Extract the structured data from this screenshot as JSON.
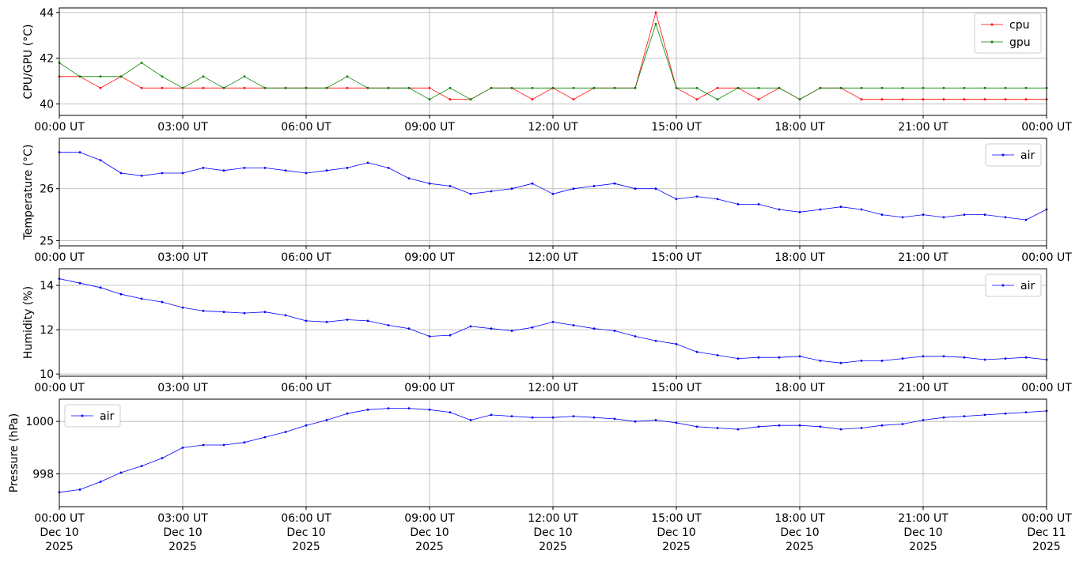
{
  "chart_data": [
    {
      "type": "line",
      "ylabel": "CPU/GPU (°C)",
      "ylim": [
        39.5,
        44.2
      ],
      "yticks": [
        40,
        42,
        44
      ],
      "xlim_hours": [
        0,
        24
      ],
      "xticks": [
        "00:00 UT",
        "03:00 UT",
        "06:00 UT",
        "09:00 UT",
        "12:00 UT",
        "15:00 UT",
        "18:00 UT",
        "21:00 UT",
        "00:00 UT"
      ],
      "grid": true,
      "legend_position": "top-right",
      "series": [
        {
          "name": "cpu",
          "color": "#ff0000",
          "x": [
            0,
            0.5,
            1,
            1.5,
            2,
            2.5,
            3,
            3.5,
            4,
            4.5,
            5,
            5.5,
            6,
            6.5,
            7,
            7.5,
            8,
            8.5,
            9,
            9.5,
            10,
            10.5,
            11,
            11.5,
            12,
            12.5,
            13,
            13.5,
            14,
            14.5,
            15,
            15.5,
            16,
            16.5,
            17,
            17.5,
            18,
            18.5,
            19,
            19.5,
            20,
            20.5,
            21,
            21.5,
            22,
            22.5,
            23,
            23.5,
            24
          ],
          "values": [
            41.2,
            41.2,
            40.7,
            41.2,
            40.7,
            40.7,
            40.7,
            40.7,
            40.7,
            40.7,
            40.7,
            40.7,
            40.7,
            40.7,
            40.7,
            40.7,
            40.7,
            40.7,
            40.7,
            40.2,
            40.2,
            40.7,
            40.7,
            40.2,
            40.7,
            40.2,
            40.7,
            40.7,
            40.7,
            44.0,
            40.7,
            40.2,
            40.7,
            40.7,
            40.2,
            40.7,
            40.2,
            40.7,
            40.7,
            40.2,
            40.2,
            40.2,
            40.2,
            40.2,
            40.2,
            40.2,
            40.2,
            40.2,
            40.2
          ]
        },
        {
          "name": "gpu",
          "color": "#008000",
          "x": [
            0,
            0.5,
            1,
            1.5,
            2,
            2.5,
            3,
            3.5,
            4,
            4.5,
            5,
            5.5,
            6,
            6.5,
            7,
            7.5,
            8,
            8.5,
            9,
            9.5,
            10,
            10.5,
            11,
            11.5,
            12,
            12.5,
            13,
            13.5,
            14,
            14.5,
            15,
            15.5,
            16,
            16.5,
            17,
            17.5,
            18,
            18.5,
            19,
            19.5,
            20,
            20.5,
            21,
            21.5,
            22,
            22.5,
            23,
            23.5,
            24
          ],
          "values": [
            41.8,
            41.2,
            41.2,
            41.2,
            41.8,
            41.2,
            40.7,
            41.2,
            40.7,
            41.2,
            40.7,
            40.7,
            40.7,
            40.7,
            41.2,
            40.7,
            40.7,
            40.7,
            40.2,
            40.7,
            40.2,
            40.7,
            40.7,
            40.7,
            40.7,
            40.7,
            40.7,
            40.7,
            40.7,
            43.5,
            40.7,
            40.7,
            40.2,
            40.7,
            40.7,
            40.7,
            40.2,
            40.7,
            40.7,
            40.7,
            40.7,
            40.7,
            40.7,
            40.7,
            40.7,
            40.7,
            40.7,
            40.7,
            40.7
          ]
        }
      ]
    },
    {
      "type": "line",
      "ylabel": "Temperature (°C)",
      "ylim": [
        24.9,
        26.97
      ],
      "yticks": [
        25,
        26
      ],
      "xlim_hours": [
        0,
        24
      ],
      "xticks": [
        "00:00 UT",
        "03:00 UT",
        "06:00 UT",
        "09:00 UT",
        "12:00 UT",
        "15:00 UT",
        "18:00 UT",
        "21:00 UT",
        "00:00 UT"
      ],
      "grid": true,
      "legend_position": "top-right",
      "series": [
        {
          "name": "air",
          "color": "#0000ff",
          "x": [
            0,
            0.5,
            1,
            1.5,
            2,
            2.5,
            3,
            3.5,
            4,
            4.5,
            5,
            5.5,
            6,
            6.5,
            7,
            7.5,
            8,
            8.5,
            9,
            9.5,
            10,
            10.5,
            11,
            11.5,
            12,
            12.5,
            13,
            13.5,
            14,
            14.5,
            15,
            15.5,
            16,
            16.5,
            17,
            17.5,
            18,
            18.5,
            19,
            19.5,
            20,
            20.5,
            21,
            21.5,
            22,
            22.5,
            23,
            23.5,
            24
          ],
          "values": [
            26.7,
            26.7,
            26.55,
            26.3,
            26.25,
            26.3,
            26.3,
            26.4,
            26.35,
            26.4,
            26.4,
            26.35,
            26.3,
            26.35,
            26.4,
            26.5,
            26.4,
            26.2,
            26.1,
            26.05,
            25.9,
            25.95,
            26.0,
            26.1,
            25.9,
            26.0,
            26.05,
            26.1,
            26.0,
            26.0,
            25.8,
            25.85,
            25.8,
            25.7,
            25.7,
            25.6,
            25.55,
            25.6,
            25.65,
            25.6,
            25.5,
            25.45,
            25.5,
            25.45,
            25.5,
            25.5,
            25.45,
            25.4,
            25.6
          ]
        }
      ]
    },
    {
      "type": "line",
      "ylabel": "Humidity (%)",
      "ylim": [
        9.9,
        14.75
      ],
      "yticks": [
        10,
        12,
        14
      ],
      "xlim_hours": [
        0,
        24
      ],
      "xticks": [
        "00:00 UT",
        "03:00 UT",
        "06:00 UT",
        "09:00 UT",
        "12:00 UT",
        "15:00 UT",
        "18:00 UT",
        "21:00 UT",
        "00:00 UT"
      ],
      "grid": true,
      "legend_position": "top-right",
      "series": [
        {
          "name": "air",
          "color": "#0000ff",
          "x": [
            0,
            0.5,
            1,
            1.5,
            2,
            2.5,
            3,
            3.5,
            4,
            4.5,
            5,
            5.5,
            6,
            6.5,
            7,
            7.5,
            8,
            8.5,
            9,
            9.5,
            10,
            10.5,
            11,
            11.5,
            12,
            12.5,
            13,
            13.5,
            14,
            14.5,
            15,
            15.5,
            16,
            16.5,
            17,
            17.5,
            18,
            18.5,
            19,
            19.5,
            20,
            20.5,
            21,
            21.5,
            22,
            22.5,
            23,
            23.5,
            24
          ],
          "values": [
            14.3,
            14.1,
            13.9,
            13.6,
            13.4,
            13.25,
            13.0,
            12.85,
            12.8,
            12.75,
            12.8,
            12.65,
            12.4,
            12.35,
            12.45,
            12.4,
            12.2,
            12.05,
            11.7,
            11.75,
            12.15,
            12.05,
            11.95,
            12.1,
            12.35,
            12.2,
            12.05,
            11.95,
            11.7,
            11.5,
            11.35,
            11.0,
            10.85,
            10.7,
            10.75,
            10.75,
            10.8,
            10.6,
            10.5,
            10.6,
            10.6,
            10.7,
            10.8,
            10.8,
            10.75,
            10.65,
            10.7,
            10.75,
            10.65
          ]
        }
      ]
    },
    {
      "type": "line",
      "ylabel": "Pressure (hPa)",
      "ylim": [
        996.75,
        1000.85
      ],
      "yticks": [
        998,
        1000
      ],
      "xlim_hours": [
        0,
        24
      ],
      "xticks": [
        "00:00 UT",
        "03:00 UT",
        "06:00 UT",
        "09:00 UT",
        "12:00 UT",
        "15:00 UT",
        "18:00 UT",
        "21:00 UT",
        "00:00 UT"
      ],
      "xticks_line2": [
        "Dec 10",
        "Dec 10",
        "Dec 10",
        "Dec 10",
        "Dec 10",
        "Dec 10",
        "Dec 10",
        "Dec 10",
        "Dec 11"
      ],
      "xticks_line3": [
        "2025",
        "2025",
        "2025",
        "2025",
        "2025",
        "2025",
        "2025",
        "2025",
        "2025"
      ],
      "grid": true,
      "legend_position": "top-left",
      "series": [
        {
          "name": "air",
          "color": "#0000ff",
          "x": [
            0,
            0.5,
            1,
            1.5,
            2,
            2.5,
            3,
            3.5,
            4,
            4.5,
            5,
            5.5,
            6,
            6.5,
            7,
            7.5,
            8,
            8.5,
            9,
            9.5,
            10,
            10.5,
            11,
            11.5,
            12,
            12.5,
            13,
            13.5,
            14,
            14.5,
            15,
            15.5,
            16,
            16.5,
            17,
            17.5,
            18,
            18.5,
            19,
            19.5,
            20,
            20.5,
            21,
            21.5,
            22,
            22.5,
            23,
            23.5,
            24
          ],
          "values": [
            997.3,
            997.4,
            997.7,
            998.05,
            998.3,
            998.6,
            999.0,
            999.1,
            999.1,
            999.2,
            999.4,
            999.6,
            999.85,
            1000.05,
            1000.3,
            1000.45,
            1000.5,
            1000.5,
            1000.45,
            1000.35,
            1000.05,
            1000.25,
            1000.2,
            1000.15,
            1000.15,
            1000.2,
            1000.15,
            1000.1,
            1000.0,
            1000.05,
            999.95,
            999.8,
            999.75,
            999.7,
            999.8,
            999.85,
            999.85,
            999.8,
            999.7,
            999.75,
            999.85,
            999.9,
            1000.05,
            1000.15,
            1000.2,
            1000.25,
            1000.3,
            1000.35,
            1000.4
          ]
        }
      ]
    }
  ]
}
